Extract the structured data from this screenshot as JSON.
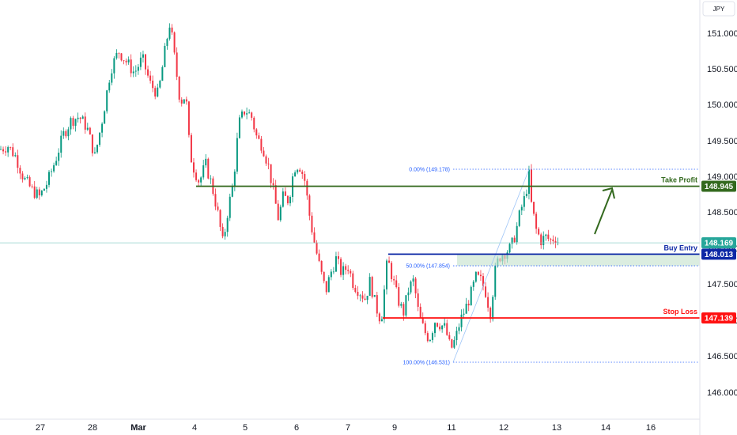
{
  "chart_data": {
    "type": "candlestick",
    "currency": "JPY",
    "ylim": [
      145.75,
      151.5
    ],
    "y_ticks": [
      "151.000",
      "150.500",
      "150.000",
      "149.500",
      "149.000",
      "148.500",
      "148.000",
      "147.500",
      "147.000",
      "146.500",
      "146.000"
    ],
    "x_ticks": [
      "27",
      "28",
      "Mar",
      "4",
      "5",
      "6",
      "7",
      "9",
      "11",
      "12",
      "13",
      "14",
      "16"
    ],
    "last_price": "148.169",
    "last_price_value": 148.169,
    "levels": [
      {
        "name": "Take Profit",
        "value": 148.945,
        "label": "148.945",
        "color": "#33691e"
      },
      {
        "name": "Buy Entry",
        "value": 148.013,
        "label": "148.013",
        "color": "#0d28a6"
      },
      {
        "name": "Stop Loss",
        "value": 147.139,
        "label": "147.139",
        "color": "#ff1111"
      }
    ],
    "fib": [
      {
        "label": "0.00% (149.178)",
        "value": 149.178
      },
      {
        "label": "50.00% (147.854)",
        "value": 147.854
      },
      {
        "label": "100.00% (146.531)",
        "value": 146.531
      }
    ],
    "price_path": [
      [
        0,
        149.45
      ],
      [
        10,
        149.5
      ],
      [
        20,
        149.35
      ],
      [
        30,
        149.05
      ],
      [
        40,
        148.9
      ],
      [
        50,
        148.8
      ],
      [
        60,
        149.0
      ],
      [
        70,
        149.3
      ],
      [
        80,
        149.65
      ],
      [
        90,
        149.85
      ],
      [
        100,
        149.9
      ],
      [
        110,
        149.75
      ],
      [
        120,
        149.35
      ],
      [
        130,
        149.9
      ],
      [
        140,
        150.55
      ],
      [
        150,
        150.8
      ],
      [
        160,
        150.65
      ],
      [
        170,
        150.5
      ],
      [
        180,
        150.7
      ],
      [
        190,
        150.35
      ],
      [
        200,
        150.2
      ],
      [
        210,
        150.9
      ],
      [
        215,
        151.2
      ],
      [
        222,
        150.6
      ],
      [
        228,
        150.1
      ],
      [
        235,
        150.2
      ],
      [
        240,
        149.4
      ],
      [
        245,
        149.2
      ],
      [
        252,
        149.0
      ],
      [
        260,
        149.25
      ],
      [
        268,
        148.95
      ],
      [
        275,
        148.6
      ],
      [
        282,
        148.15
      ],
      [
        288,
        148.6
      ],
      [
        295,
        149.0
      ],
      [
        302,
        149.8
      ],
      [
        310,
        150.0
      ],
      [
        318,
        149.9
      ],
      [
        325,
        149.6
      ],
      [
        332,
        149.5
      ],
      [
        340,
        149.2
      ],
      [
        346,
        148.85
      ],
      [
        352,
        148.5
      ],
      [
        358,
        148.8
      ],
      [
        365,
        148.75
      ],
      [
        372,
        149.2
      ],
      [
        378,
        149.25
      ],
      [
        385,
        149.05
      ],
      [
        392,
        148.5
      ],
      [
        398,
        148.15
      ],
      [
        405,
        147.8
      ],
      [
        412,
        147.5
      ],
      [
        418,
        147.75
      ],
      [
        425,
        147.95
      ],
      [
        432,
        147.75
      ],
      [
        440,
        147.85
      ],
      [
        447,
        147.6
      ],
      [
        455,
        147.5
      ],
      [
        462,
        147.4
      ],
      [
        468,
        147.65
      ],
      [
        475,
        147.3
      ],
      [
        482,
        147.1
      ],
      [
        490,
        147.95
      ],
      [
        496,
        147.7
      ],
      [
        503,
        147.4
      ],
      [
        510,
        147.2
      ],
      [
        517,
        147.55
      ],
      [
        523,
        147.65
      ],
      [
        530,
        147.15
      ],
      [
        537,
        146.95
      ],
      [
        543,
        146.85
      ],
      [
        550,
        147.1
      ],
      [
        557,
        147.05
      ],
      [
        563,
        147.0
      ],
      [
        570,
        146.7
      ],
      [
        576,
        146.85
      ],
      [
        582,
        147.1
      ],
      [
        588,
        147.25
      ],
      [
        595,
        147.45
      ],
      [
        602,
        147.7
      ],
      [
        608,
        147.65
      ],
      [
        614,
        147.5
      ],
      [
        620,
        147.2
      ],
      [
        627,
        147.85
      ],
      [
        633,
        148.0
      ],
      [
        640,
        148.05
      ],
      [
        646,
        148.1
      ],
      [
        652,
        148.3
      ],
      [
        658,
        148.6
      ],
      [
        664,
        148.8
      ],
      [
        669,
        149.1
      ],
      [
        672,
        148.7
      ],
      [
        678,
        148.35
      ],
      [
        684,
        148.2
      ],
      [
        690,
        148.25
      ],
      [
        696,
        148.2
      ],
      [
        702,
        148.25
      ],
      [
        708,
        148.15
      ]
    ]
  }
}
